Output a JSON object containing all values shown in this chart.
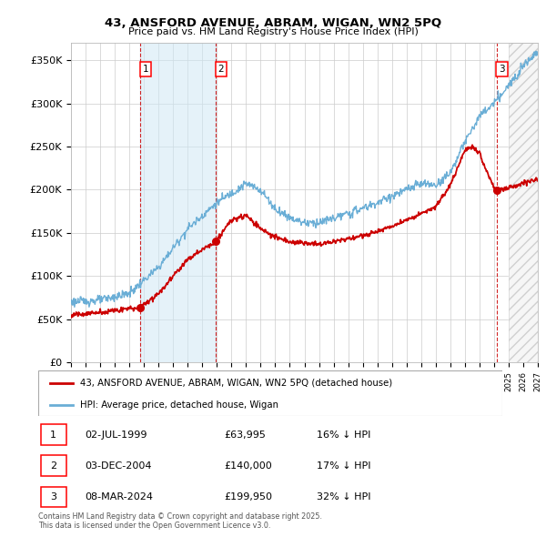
{
  "title": "43, ANSFORD AVENUE, ABRAM, WIGAN, WN2 5PQ",
  "subtitle": "Price paid vs. HM Land Registry's House Price Index (HPI)",
  "ylim": [
    0,
    370000
  ],
  "xlim": [
    1995,
    2027
  ],
  "sale_dates": [
    1999.75,
    2004.92,
    2024.19
  ],
  "sale_prices": [
    63995,
    140000,
    199950
  ],
  "sale_labels": [
    "1",
    "2",
    "3"
  ],
  "sale_info": [
    {
      "label": "1",
      "date": "02-JUL-1999",
      "price": "£63,995",
      "pct": "16% ↓ HPI"
    },
    {
      "label": "2",
      "date": "03-DEC-2004",
      "price": "£140,000",
      "pct": "17% ↓ HPI"
    },
    {
      "label": "3",
      "date": "08-MAR-2024",
      "price": "£199,950",
      "pct": "32% ↓ HPI"
    }
  ],
  "hpi_color": "#6aaed6",
  "price_color": "#cc0000",
  "grid_color": "#cccccc",
  "legend_line1": "43, ANSFORD AVENUE, ABRAM, WIGAN, WN2 5PQ (detached house)",
  "legend_line2": "HPI: Average price, detached house, Wigan",
  "footnote": "Contains HM Land Registry data © Crown copyright and database right 2025.\nThis data is licensed under the Open Government Licence v3.0."
}
